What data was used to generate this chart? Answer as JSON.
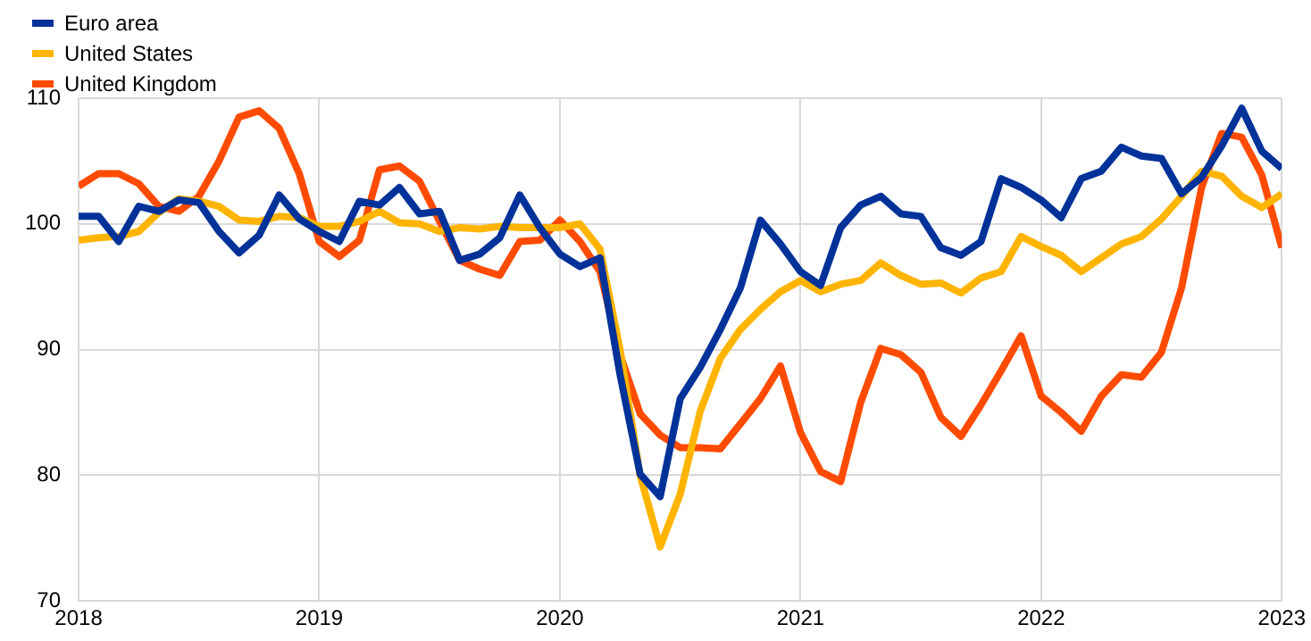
{
  "chart_data": {
    "type": "line",
    "xlim": [
      "2018-01",
      "2023-01"
    ],
    "xticks": [
      "2018",
      "2019",
      "2020",
      "2021",
      "2022",
      "2023"
    ],
    "ylim": [
      70,
      110
    ],
    "yticks": [
      70,
      80,
      90,
      100,
      110
    ],
    "grid": true,
    "legend": "top left",
    "marker": "none",
    "line_style": "solid",
    "x": [
      "2018-01",
      "2018-02",
      "2018-03",
      "2018-04",
      "2018-05",
      "2018-06",
      "2018-07",
      "2018-08",
      "2018-09",
      "2018-10",
      "2018-11",
      "2018-12",
      "2019-01",
      "2019-02",
      "2019-03",
      "2019-04",
      "2019-05",
      "2019-06",
      "2019-07",
      "2019-08",
      "2019-09",
      "2019-10",
      "2019-11",
      "2019-12",
      "2020-01",
      "2020-02",
      "2020-03",
      "2020-04",
      "2020-05",
      "2020-06",
      "2020-07",
      "2020-08",
      "2020-09",
      "2020-10",
      "2020-11",
      "2020-12",
      "2021-01",
      "2021-02",
      "2021-03",
      "2021-04",
      "2021-05",
      "2021-06",
      "2021-07",
      "2021-08",
      "2021-09",
      "2021-10",
      "2021-11",
      "2021-12",
      "2022-01",
      "2022-02",
      "2022-03",
      "2022-04",
      "2022-05",
      "2022-06",
      "2022-07",
      "2022-08",
      "2022-09",
      "2022-10",
      "2022-11",
      "2022-12",
      "2023-01"
    ],
    "series": [
      {
        "name": "Euro area",
        "color": "#003299",
        "values": [
          100.6,
          100.6,
          98.6,
          101.4,
          101,
          101.9,
          101.7,
          99.4,
          97.7,
          99.1,
          102.3,
          100.4,
          99.4,
          98.6,
          101.8,
          101.5,
          102.9,
          100.8,
          101,
          97.1,
          97.6,
          98.9,
          102.3,
          99.7,
          97.6,
          96.6,
          97.3,
          88,
          80.1,
          78.3,
          86.1,
          88.6,
          91.6,
          94.9,
          100.3,
          98.4,
          96.2,
          95.1,
          99.7,
          101.5,
          102.2,
          100.8,
          100.6,
          98.1,
          97.5,
          98.6,
          103.6,
          102.9,
          101.9,
          100.5,
          103.6,
          104.2,
          106.1,
          105.4,
          105.2,
          102.4,
          103.7,
          106.2,
          109.2,
          105.8,
          104.4
        ]
      },
      {
        "name": "United States",
        "color": "#ffb400",
        "values": [
          98.7,
          98.9,
          99,
          99.4,
          100.9,
          102,
          101.8,
          101.4,
          100.3,
          100.2,
          100.6,
          100.5,
          99.8,
          99.8,
          100.2,
          101,
          100.1,
          100,
          99.4,
          99.7,
          99.6,
          99.8,
          99.7,
          99.7,
          99.7,
          100,
          98,
          90,
          80,
          74.3,
          78.5,
          85.1,
          89.3,
          91.6,
          93.2,
          94.6,
          95.5,
          94.6,
          95.2,
          95.5,
          96.9,
          95.9,
          95.2,
          95.3,
          94.5,
          95.7,
          96.2,
          99,
          98.2,
          97.5,
          96.2,
          97.3,
          98.4,
          99,
          100.4,
          102.2,
          104.2,
          103.8,
          102.2,
          101.3,
          102.4
        ]
      },
      {
        "name": "United Kingdom",
        "color": "#ff4b00",
        "values": [
          103,
          104,
          104,
          103.2,
          101.4,
          101,
          102.2,
          105,
          108.5,
          109,
          107.6,
          104,
          98.6,
          97.4,
          98.7,
          104.3,
          104.6,
          103.4,
          100.2,
          97.1,
          96.4,
          95.9,
          98.6,
          98.7,
          100.3,
          98.6,
          96.2,
          89.6,
          84.9,
          83.2,
          82.2,
          82.2,
          82.1,
          84.1,
          86.1,
          88.7,
          83.4,
          80.3,
          79.5,
          85.8,
          90.1,
          89.6,
          88.2,
          84.6,
          83.1,
          85.6,
          88.3,
          91.1,
          86.3,
          85,
          83.5,
          86.3,
          88,
          87.8,
          89.8,
          94.9,
          102.9,
          107.2,
          106.9,
          103.9,
          98.1
        ]
      }
    ]
  }
}
